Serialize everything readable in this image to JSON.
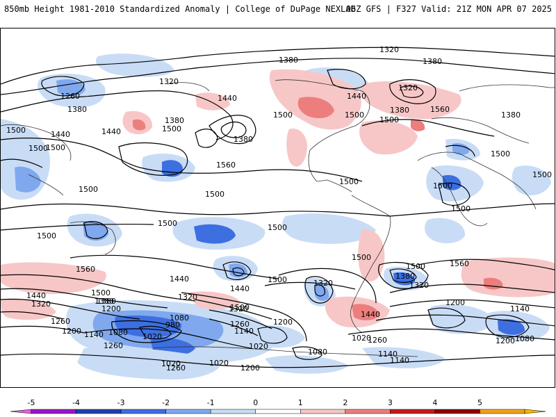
{
  "header": {
    "left_title": "850mb Height 1981-2010 Standardized Anomaly | College of DuPage NEXLAB",
    "right_title": "06Z GFS | F327 Valid: 21Z MON APR 07 2025"
  },
  "colorbar": {
    "ticks": [
      "-5",
      "-4",
      "-3",
      "-2",
      "-1",
      "0",
      "1",
      "2",
      "3",
      "4",
      "5"
    ],
    "bins": [
      {
        "from": -5,
        "to": -4,
        "color": "#9a14c8"
      },
      {
        "from": -4,
        "to": -3,
        "color": "#1e3fb0"
      },
      {
        "from": -3,
        "to": -2,
        "color": "#3d6fe0"
      },
      {
        "from": -2,
        "to": -1,
        "color": "#7fa8ee"
      },
      {
        "from": -1,
        "to": 0,
        "color": "#c9dcf6"
      },
      {
        "from": 0,
        "to": 1,
        "color": "#ffffff"
      },
      {
        "from": 1,
        "to": 2,
        "color": "#f7c7c7"
      },
      {
        "from": 2,
        "to": 3,
        "color": "#ec7e7e"
      },
      {
        "from": 3,
        "to": 4,
        "color": "#c21a1a"
      },
      {
        "from": 4,
        "to": 5,
        "color": "#8a0000"
      },
      {
        "from": 5,
        "to": 6,
        "color": "#f2a218"
      }
    ],
    "low_arrow_color": "#e060e0",
    "high_arrow_color": "#f6b800"
  },
  "contour_labels": [
    "1320",
    "1380",
    "1320",
    "1380",
    "1260",
    "1440",
    "1380",
    "1500",
    "1500",
    "1380",
    "1440",
    "1500",
    "1500",
    "1500",
    "1440",
    "1500",
    "1380",
    "1500",
    "1440",
    "1320",
    "1380",
    "1560",
    "1380",
    "1500",
    "1560",
    "1500",
    "1500",
    "1500",
    "1500",
    "1500",
    "1500",
    "1500",
    "1500",
    "1500",
    "1500",
    "1560",
    "1560",
    "1440",
    "1320",
    "1500",
    "1440",
    "1380",
    "1320",
    "1200",
    "1260",
    "1200",
    "1080",
    "1080",
    "980",
    "1020",
    "1020",
    "1140",
    "1260",
    "1320",
    "1500",
    "1380",
    "1260",
    "1200",
    "1140",
    "1080",
    "1020",
    "1020",
    "1260",
    "1200",
    "1320",
    "1380",
    "1320",
    "1440",
    "1200",
    "1140",
    "1080",
    "1140",
    "1200",
    "1500",
    "1500",
    "1140",
    "1020",
    "1440",
    "1260"
  ]
}
